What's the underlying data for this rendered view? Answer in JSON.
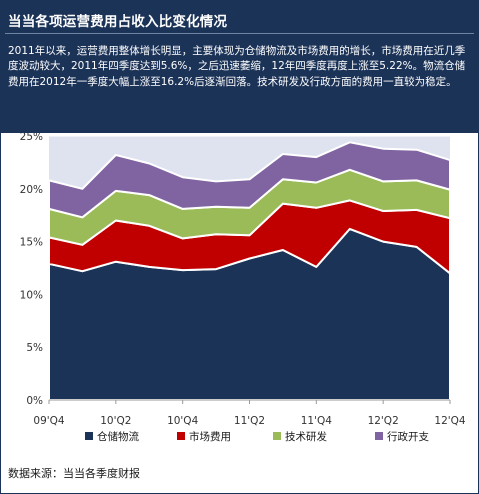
{
  "header": {
    "title": "当当各项运营费用占收入比变化情况",
    "description": "2011年以来，运营费用整体增长明显，主要体现为仓储物流及市场费用的增长，市场费用在近几季度波动较大，2011年四季度达到5.6%，之后迅速萎缩，12年四季度再度上涨至5.22%。物流仓储费用在2012年一季度大幅上涨至16.2%后逐渐回落。技术研发及行政方面的费用一直较为稳定。"
  },
  "source": "数据来源：当当各季度财报",
  "colors": {
    "header_bg": "#1c3358",
    "plot_bg": "#dfe3f0"
  },
  "chart_data": {
    "type": "area",
    "stacked": true,
    "x": [
      "09'Q4",
      "10'Q1",
      "10'Q2",
      "10'Q3",
      "10'Q4",
      "11'Q1",
      "11'Q2",
      "11'Q3",
      "11'Q4",
      "12'Q1",
      "12'Q2",
      "12'Q3",
      "12'Q4"
    ],
    "x_tick_labels": [
      "09'Q4",
      "10'Q2",
      "10'Q4",
      "11'Q2",
      "11'Q4",
      "12'Q2",
      "12'Q4"
    ],
    "x_tick_index": [
      0,
      2,
      4,
      6,
      8,
      10,
      12
    ],
    "y_ticks": [
      "0%",
      "5%",
      "10%",
      "15%",
      "20%",
      "25%"
    ],
    "y_tick_values": [
      0,
      5,
      10,
      15,
      20,
      25
    ],
    "ylim": [
      0,
      25
    ],
    "grid": true,
    "legend_position": "bottom",
    "series": [
      {
        "name": "仓储物流",
        "color": "#1c3358",
        "values": [
          12.9,
          12.2,
          13.1,
          12.6,
          12.3,
          12.4,
          13.4,
          14.2,
          12.6,
          16.2,
          15.0,
          14.5,
          12.0
        ]
      },
      {
        "name": "市场费用",
        "color": "#c00000",
        "values": [
          2.5,
          2.5,
          3.9,
          3.9,
          3.0,
          3.3,
          2.2,
          4.4,
          5.6,
          2.7,
          2.9,
          3.5,
          5.22
        ]
      },
      {
        "name": "技术研发",
        "color": "#9bbb59",
        "values": [
          2.7,
          2.6,
          2.8,
          2.9,
          2.8,
          2.6,
          2.6,
          2.3,
          2.4,
          2.9,
          2.8,
          2.8,
          2.7
        ]
      },
      {
        "name": "行政开支",
        "color": "#8064a2",
        "values": [
          2.7,
          2.7,
          3.4,
          3.0,
          3.0,
          2.4,
          2.7,
          2.4,
          2.4,
          2.6,
          3.1,
          2.9,
          2.8
        ]
      }
    ]
  }
}
